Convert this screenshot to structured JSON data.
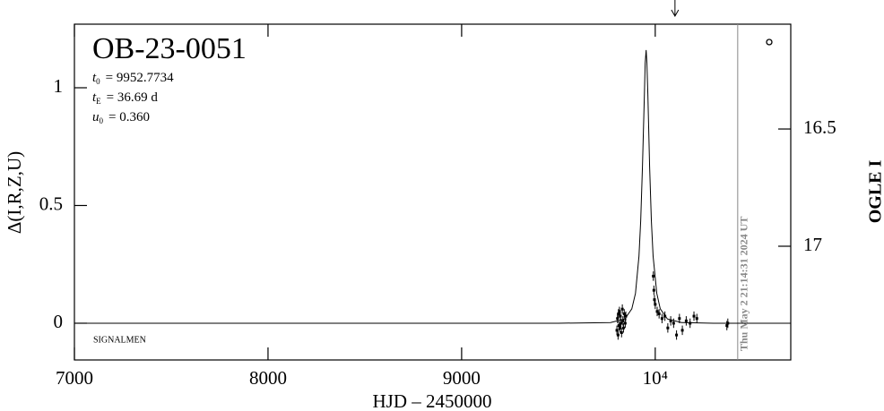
{
  "chart_data": {
    "type": "scatter",
    "title": "OB-23-0051",
    "x_label": "HJD – 2450000",
    "y_label": "Δ(I,R,Z,U)",
    "y2_label": "OGLE I",
    "annotations": [
      {
        "symbol": "t",
        "sub": "0",
        "text": "= 9952.7734"
      },
      {
        "symbol": "t",
        "sub": "E",
        "text": "= 36.69 d"
      },
      {
        "symbol": "u",
        "sub": "0",
        "text": "= 0.360"
      }
    ],
    "footer_label": "SIGNALMEN",
    "timestamp": {
      "x": 10426,
      "label": "Thu May  2 21:14:31 2024 UT"
    },
    "arrow_x": 10102,
    "xlim": [
      7000,
      10700
    ],
    "ylim": [
      -0.156,
      1.27
    ],
    "y2lim": [
      16.053,
      17.485
    ],
    "y2_inverted": true,
    "xticks": [
      7000,
      8000,
      9000,
      {
        "value": 10000,
        "label": "10⁴"
      }
    ],
    "yticks": [
      0,
      0.5,
      1
    ],
    "y2ticks": [
      16.5,
      17
    ],
    "model": {
      "color": "#000000",
      "x": [
        7000,
        9500,
        9769,
        9843,
        9879,
        9898,
        9916,
        9925,
        9934,
        9944,
        9948,
        9953,
        9957,
        9962,
        9971,
        9980,
        9989,
        10008,
        10026,
        10063,
        10136,
        10300,
        10700
      ],
      "values": [
        0,
        0,
        0.003,
        0.018,
        0.061,
        0.127,
        0.285,
        0.436,
        0.665,
        0.97,
        1.104,
        1.16,
        1.104,
        0.97,
        0.665,
        0.436,
        0.285,
        0.127,
        0.061,
        0.018,
        0.003,
        0,
        0
      ]
    },
    "series": [
      {
        "color": "#000000",
        "x": [
          9802,
          9805,
          9808,
          9810,
          9812,
          9815,
          9818,
          9820,
          9823,
          9826,
          9830,
          9833,
          9836,
          9840,
          9845,
          9848,
          9990,
          9993,
          9996,
          10000,
          10010,
          10020,
          10035,
          10050,
          10065,
          10080,
          10095,
          10110,
          10125,
          10140,
          10160,
          10180,
          10200,
          10215,
          10370,
          10375
        ],
        "values": [
          -0.03,
          0.02,
          -0.05,
          0.04,
          -0.01,
          0.05,
          -0.02,
          0.03,
          0.0,
          -0.04,
          0.06,
          0.01,
          -0.02,
          0.04,
          0.0,
          0.03,
          0.2,
          0.14,
          0.1,
          0.08,
          0.05,
          0.04,
          0.02,
          0.03,
          -0.02,
          0.01,
          0.0,
          -0.05,
          0.02,
          -0.03,
          0.01,
          0.0,
          0.03,
          0.02,
          -0.01,
          0.0
        ],
        "errors": [
          0.02,
          0.02,
          0.02,
          0.02,
          0.02,
          0.02,
          0.02,
          0.02,
          0.02,
          0.02,
          0.02,
          0.02,
          0.02,
          0.02,
          0.02,
          0.02,
          0.02,
          0.02,
          0.02,
          0.02,
          0.02,
          0.02,
          0.02,
          0.02,
          0.02,
          0.02,
          0.02,
          0.02,
          0.02,
          0.02,
          0.02,
          0.02,
          0.02,
          0.02,
          0.02,
          0.02
        ]
      }
    ]
  }
}
